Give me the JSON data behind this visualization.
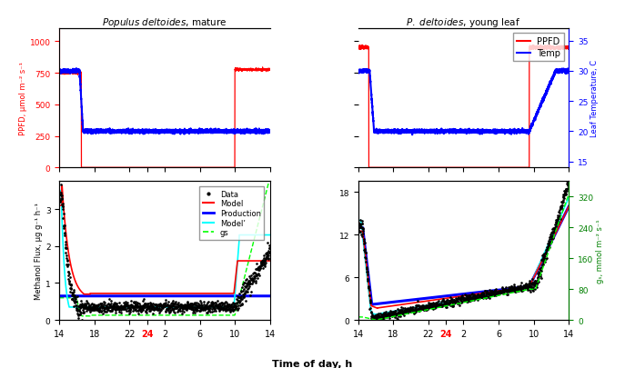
{
  "title_left": "Populus deltoides , mature",
  "title_right": "P. deltoides , young leaf",
  "xlabel": "Time of day, h",
  "ylabel_ppfd": "PPFD, μmol m⁻² s⁻¹",
  "ylabel_temp": "Leaf Temperature, C",
  "ylabel_flux": "Methanol Flux, μg g⁻¹ h⁻¹",
  "ylabel_gs": "gₛ, mmol m⁻² s⁻¹",
  "xtick_pos": [
    14,
    18,
    22,
    24,
    26,
    30,
    34,
    38
  ],
  "xtick_labels": [
    "14",
    "18",
    "22",
    "24",
    "2",
    "6",
    "10",
    "14"
  ],
  "ppfd_color": "#ff0000",
  "temp_color": "#0000ff",
  "model_color": "#ff0000",
  "production_color": "#0000ff",
  "model2_color": "#00ffff",
  "gs_color": "#00dd00",
  "data_color": "#000000"
}
